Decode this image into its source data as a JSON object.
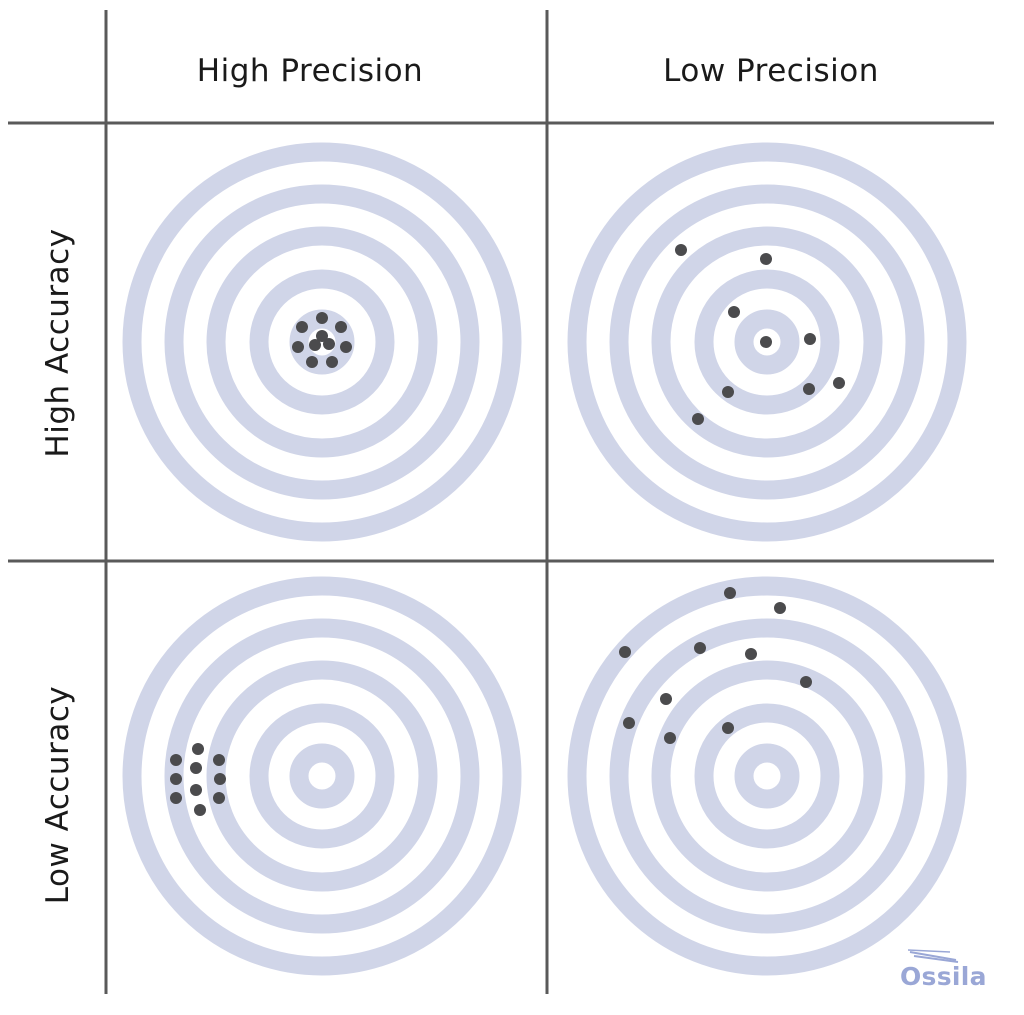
{
  "columns": [
    {
      "label": "High Precision"
    },
    {
      "label": "Low Precision"
    }
  ],
  "rows": [
    {
      "label": "High Accuracy"
    },
    {
      "label": "Low Accuracy"
    }
  ],
  "target": {
    "ring_color": "#d0d5e8",
    "dot_color": "#4b4b4d",
    "grid_line_color": "#5a5a5a"
  },
  "brand": {
    "logo_text": "Ossila",
    "logo_color": "#9aa7d6"
  }
}
